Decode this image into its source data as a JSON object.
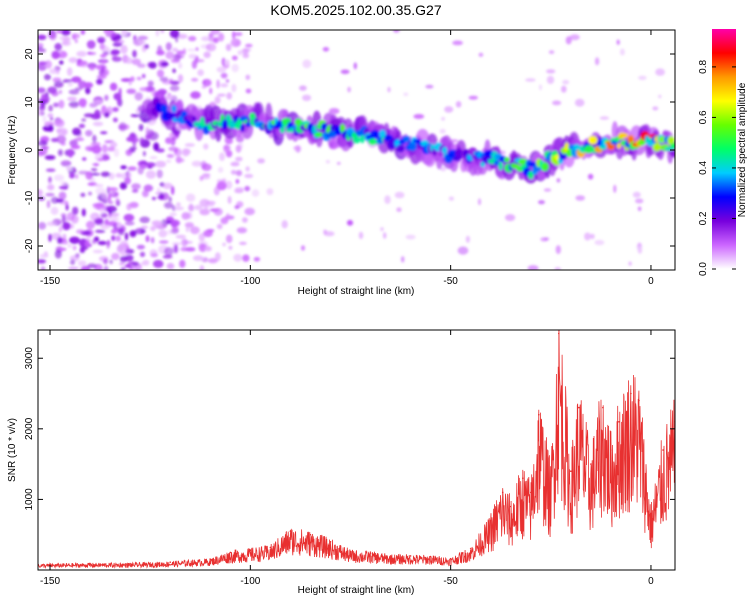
{
  "title": "KOM5.2025.102.00.35.G27",
  "chart_data": [
    {
      "type": "heatmap",
      "xlabel": "Height of straight line (km)",
      "ylabel": "Frequency (Hz)",
      "xlim": [
        -153,
        6
      ],
      "ylim": [
        -25,
        25
      ],
      "xticks": [
        -150,
        -100,
        -50,
        0
      ],
      "yticks": [
        -20,
        -10,
        0,
        10,
        20
      ],
      "colorbar": {
        "label": "Normalized spectral amplitude",
        "range": [
          0.0,
          0.95
        ],
        "ticks": [
          "0.0",
          "0.2",
          "0.4",
          "0.6",
          "0.8"
        ],
        "colormap": [
          "#ffffff",
          "#cc66ff",
          "#7700dd",
          "#0000ff",
          "#00ccff",
          "#00ff66",
          "#66ff00",
          "#ffff00",
          "#ff9900",
          "#ff0000",
          "#ff00aa"
        ]
      },
      "ridge": {
        "x": [
          -124,
          -110,
          -100,
          -90,
          -80,
          -70,
          -60,
          -50,
          -40,
          -30,
          -20,
          -10,
          0,
          5
        ],
        "y": [
          9,
          5,
          6,
          5,
          4,
          3,
          1,
          -1,
          -2,
          -4,
          0,
          2,
          2,
          1
        ],
        "peak_amplitude": [
          0.3,
          0.5,
          0.5,
          0.6,
          0.6,
          0.5,
          0.4,
          0.4,
          0.5,
          0.6,
          0.7,
          0.8,
          0.9,
          0.9
        ]
      }
    },
    {
      "type": "line",
      "xlabel": "Height of straight line (km)",
      "ylabel": "SNR (10 * v/v)",
      "xlim": [
        -153,
        6
      ],
      "ylim": [
        0,
        3400
      ],
      "xticks": [
        -150,
        -100,
        -50,
        0
      ],
      "yticks": [
        1000,
        2000,
        3000
      ],
      "color": "#e83030",
      "series": [
        {
          "x": [
            -153,
            -140,
            -130,
            -120,
            -110,
            -105,
            -100,
            -95,
            -90,
            -85,
            -80,
            -75,
            -70,
            -65,
            -60,
            -55,
            -50,
            -45,
            -40,
            -37,
            -35,
            -32,
            -30,
            -28,
            -25,
            -23,
            -20,
            -18,
            -15,
            -12,
            -10,
            -8,
            -5,
            -3,
            0,
            3,
            6
          ],
          "y": [
            80,
            90,
            90,
            110,
            150,
            250,
            280,
            320,
            550,
            500,
            400,
            260,
            240,
            200,
            200,
            190,
            160,
            300,
            700,
            1100,
            900,
            1300,
            1100,
            2200,
            1300,
            3350,
            1400,
            2300,
            1500,
            2300,
            1700,
            2100,
            2500,
            2400,
            800,
            1700,
            2100
          ]
        }
      ]
    }
  ]
}
